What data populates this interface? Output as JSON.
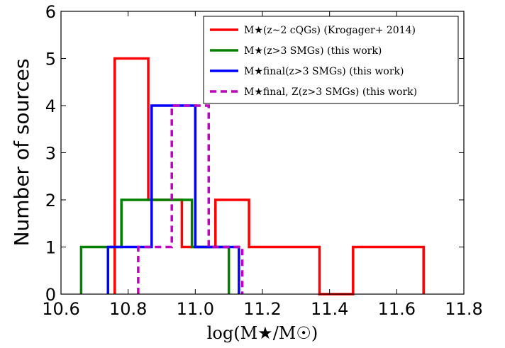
{
  "chart_data": {
    "type": "histogram-step",
    "xlabel": "log(M★/M☉)",
    "ylabel": "Number of sources",
    "xlim": [
      10.6,
      11.8
    ],
    "ylim": [
      0,
      6
    ],
    "xticks": [
      "10.6",
      "10.8",
      "11.0",
      "11.2",
      "11.4",
      "11.6",
      "11.8"
    ],
    "yticks": [
      "0",
      "1",
      "2",
      "3",
      "4",
      "5",
      "6"
    ],
    "grid": false,
    "legend_position": "top-right",
    "series": [
      {
        "name": "M★(z∼2 cQGs) (Krogager+ 2014)",
        "color": "#ff0000",
        "dashed": false,
        "edges": [
          10.76,
          10.86,
          10.96,
          11.06,
          11.16,
          11.27,
          11.37,
          11.47,
          11.57,
          11.68
        ],
        "counts": [
          5,
          2,
          1,
          2,
          1,
          1,
          0,
          1,
          1
        ]
      },
      {
        "name": "M★(z>3 SMGs) (this work)",
        "color": "#008000",
        "dashed": false,
        "edges": [
          10.66,
          10.78,
          10.99,
          11.1
        ],
        "counts": [
          1,
          2,
          1
        ]
      },
      {
        "name": "M★final(z>3 SMGs) (this work)",
        "color": "#0000ff",
        "dashed": false,
        "edges": [
          10.74,
          10.87,
          11.0,
          11.13
        ],
        "counts": [
          1,
          4,
          1
        ]
      },
      {
        "name": "M★final, Z(z>3 SMGs) (this work)",
        "color": "#bf00bf",
        "dashed": true,
        "edges": [
          10.83,
          10.93,
          11.04,
          11.14
        ],
        "counts": [
          1,
          4,
          1
        ]
      }
    ]
  }
}
